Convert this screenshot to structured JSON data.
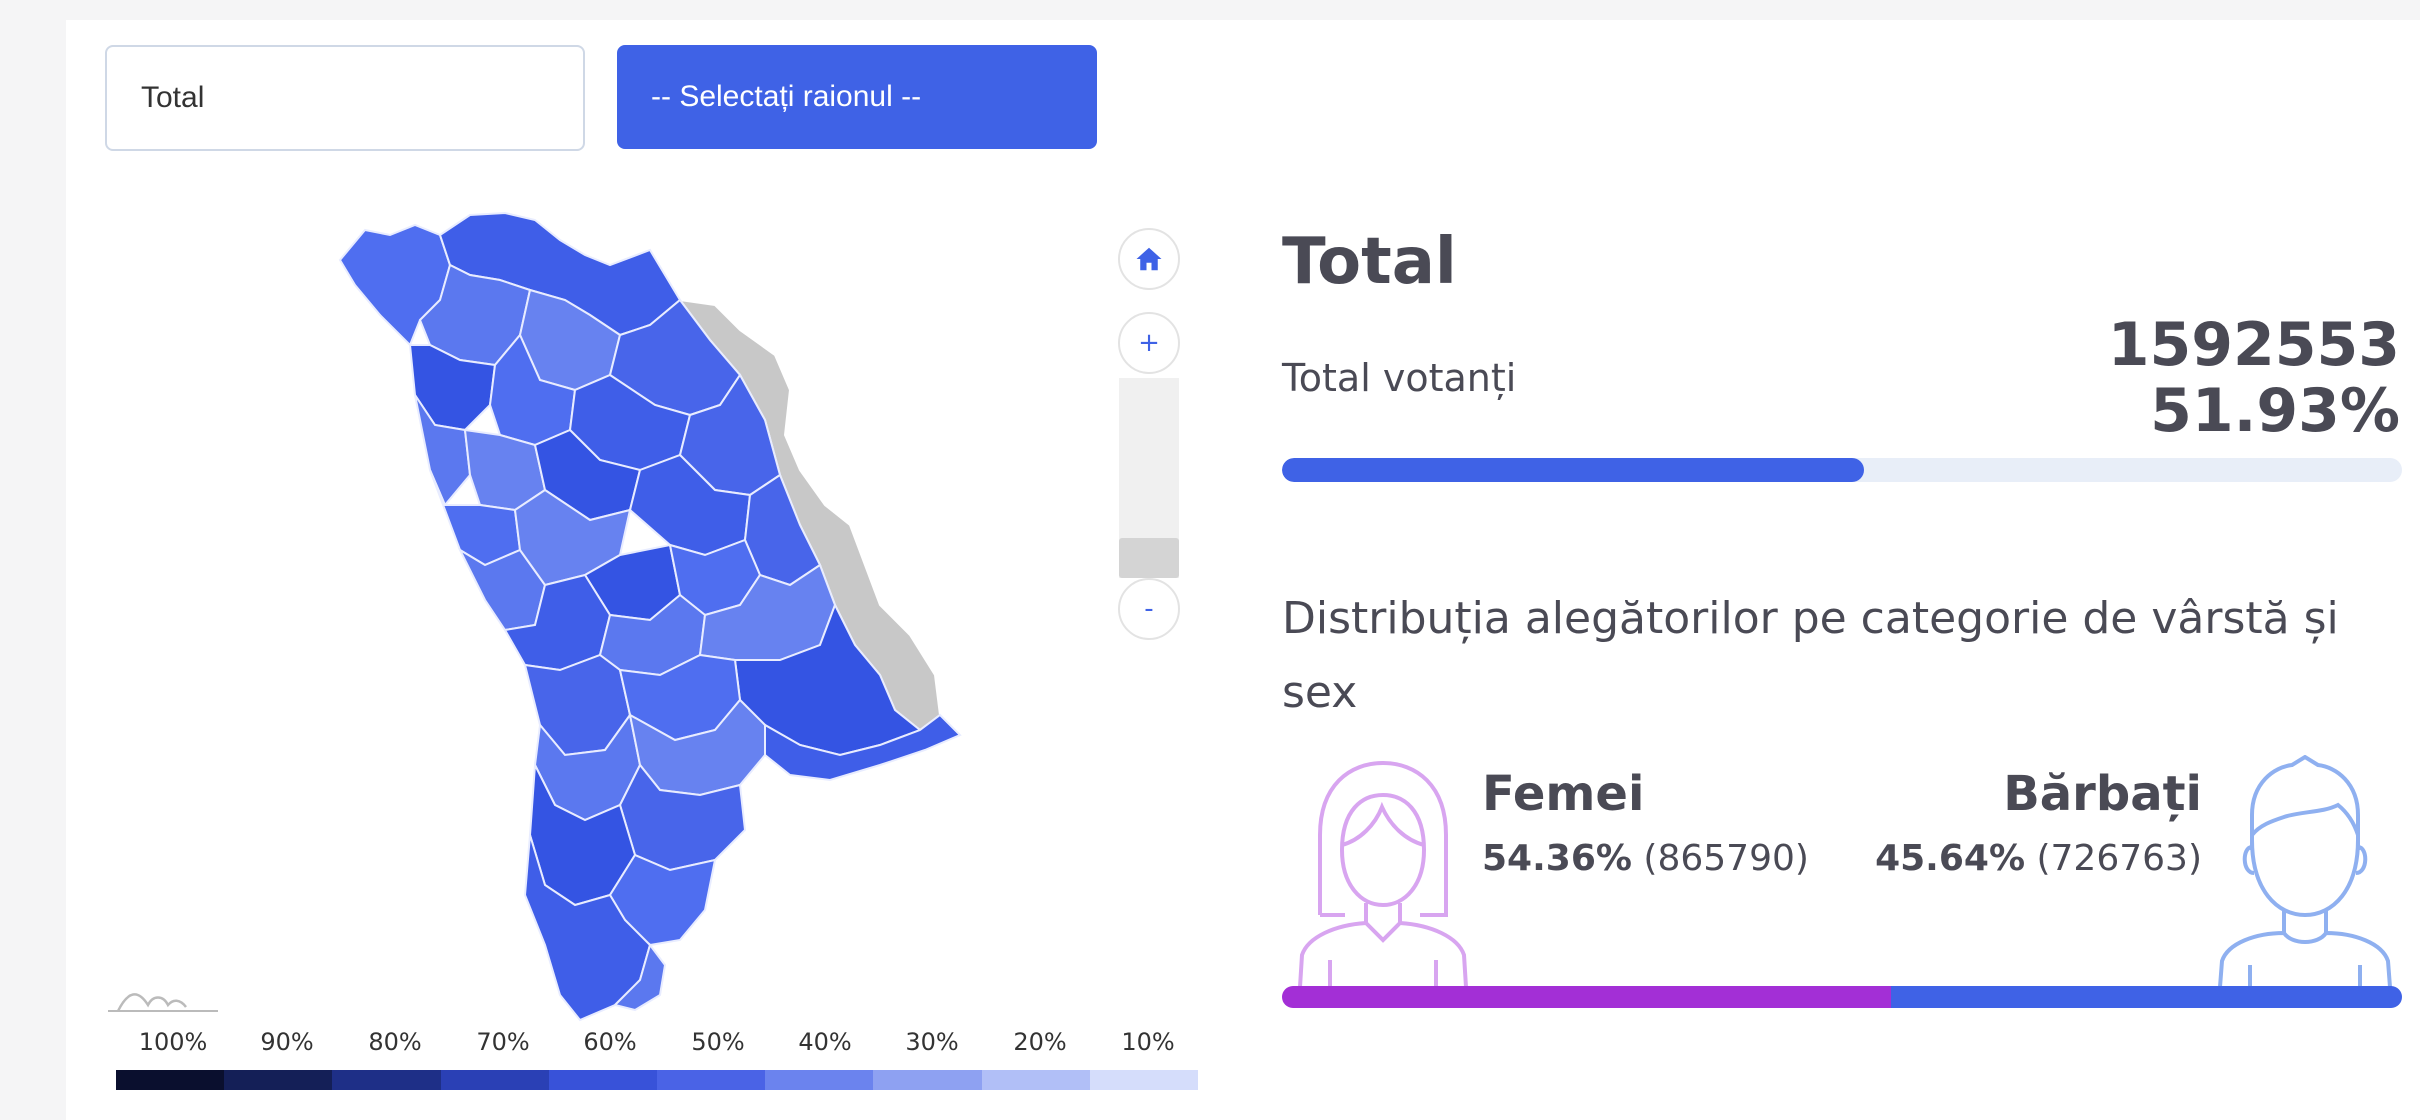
{
  "filters": {
    "scope_value": "Total",
    "district_placeholder": "-- Selectați raionul --"
  },
  "map": {
    "zoom_in_label": "+",
    "zoom_out_label": "-",
    "legend_labels": [
      "100%",
      "90%",
      "80%",
      "70%",
      "60%",
      "50%",
      "40%",
      "30%",
      "20%",
      "10%"
    ],
    "legend_colors": [
      "#0a0f2e",
      "#141f57",
      "#1e2f87",
      "#2a40b5",
      "#3852d9",
      "#4a63e6",
      "#6b83ee",
      "#8ea1f2",
      "#b1bff7",
      "#d5ddfb"
    ],
    "region_colors": [
      "#4f6ef0",
      "#3f5ee8",
      "#5b78ef",
      "#6782f0",
      "#4865ea",
      "#3454e3"
    ],
    "inactive_color": "#c8c8c8"
  },
  "summary": {
    "title": "Total",
    "voters_label": "Total votanți",
    "voters_count": "1592553",
    "turnout_percent": "51.93%",
    "turnout_fraction": 0.5193
  },
  "distribution": {
    "title": "Distribuția alegătorilor pe categorie de vârstă și sex",
    "female": {
      "label": "Femei",
      "percent": "54.36%",
      "count": "(865790)",
      "fraction": 0.5436,
      "color": "#a32fd6",
      "icon": "woman-avatar-icon"
    },
    "male": {
      "label": "Bărbați",
      "percent": "45.64%",
      "count": "(726763)",
      "fraction": 0.4564,
      "color": "#3f62e6",
      "icon": "man-avatar-icon"
    }
  }
}
